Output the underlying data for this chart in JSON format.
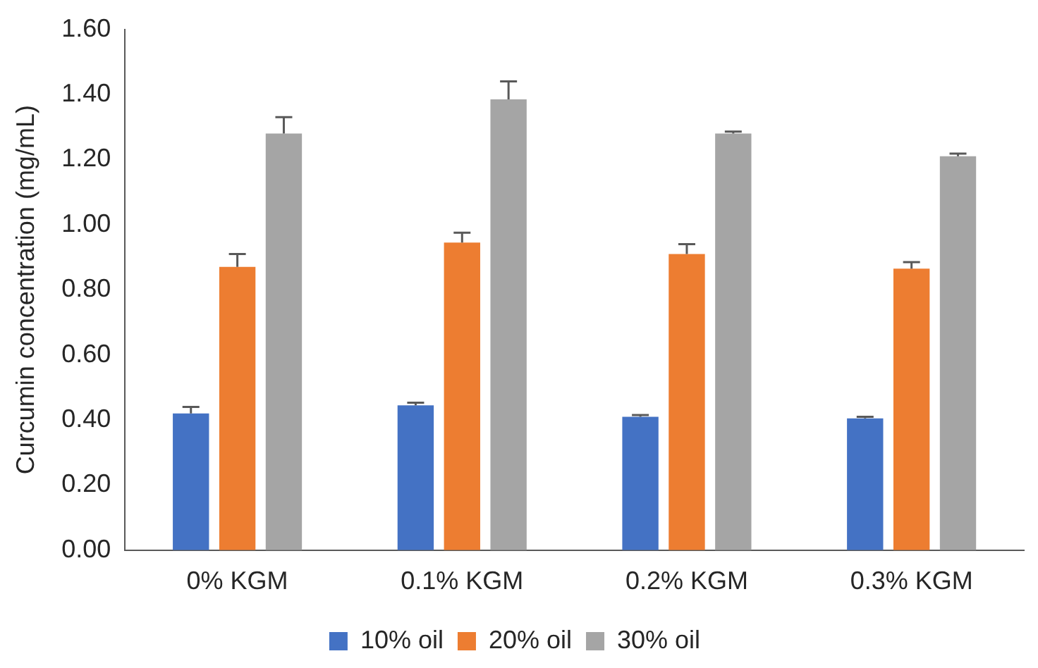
{
  "chart_data": {
    "type": "bar",
    "ylabel": "Curcumin concentration (mg/mL)",
    "categories": [
      "0% KGM",
      "0.1% KGM",
      "0.2% KGM",
      "0.3% KGM"
    ],
    "series": [
      {
        "name": "10% oil",
        "color": "#4472c4",
        "values": [
          0.42,
          0.445,
          0.41,
          0.405
        ],
        "errors": [
          [
            0.42,
            0.44
          ],
          [
            0.445,
            0.453
          ],
          [
            0.41,
            0.415
          ],
          [
            0.405,
            0.41
          ]
        ]
      },
      {
        "name": "20% oil",
        "color": "#ed7d31",
        "values": [
          0.87,
          0.945,
          0.91,
          0.865
        ],
        "errors": [
          [
            0.87,
            0.91
          ],
          [
            0.945,
            0.975
          ],
          [
            0.91,
            0.94
          ],
          [
            0.865,
            0.885
          ]
        ]
      },
      {
        "name": "30% oil",
        "color": "#a5a5a5",
        "values": [
          1.28,
          1.385,
          1.28,
          1.21
        ],
        "errors": [
          [
            1.28,
            1.33
          ],
          [
            1.385,
            1.44
          ],
          [
            1.28,
            1.286
          ],
          [
            1.21,
            1.218
          ]
        ]
      }
    ],
    "ylim": [
      0,
      1.6
    ],
    "yticks": [
      {
        "value": 0,
        "label": "0.00"
      },
      {
        "value": 0.2,
        "label": "0.20"
      },
      {
        "value": 0.4,
        "label": "0.40"
      },
      {
        "value": 0.6,
        "label": "0.60"
      },
      {
        "value": 0.8,
        "label": "0.80"
      },
      {
        "value": 1,
        "label": "1.00"
      },
      {
        "value": 1.2,
        "label": "1.20"
      },
      {
        "value": 1.4,
        "label": "1.40"
      },
      {
        "value": 1.6,
        "label": "1.60"
      }
    ],
    "grid": false,
    "legend": "bottom"
  }
}
